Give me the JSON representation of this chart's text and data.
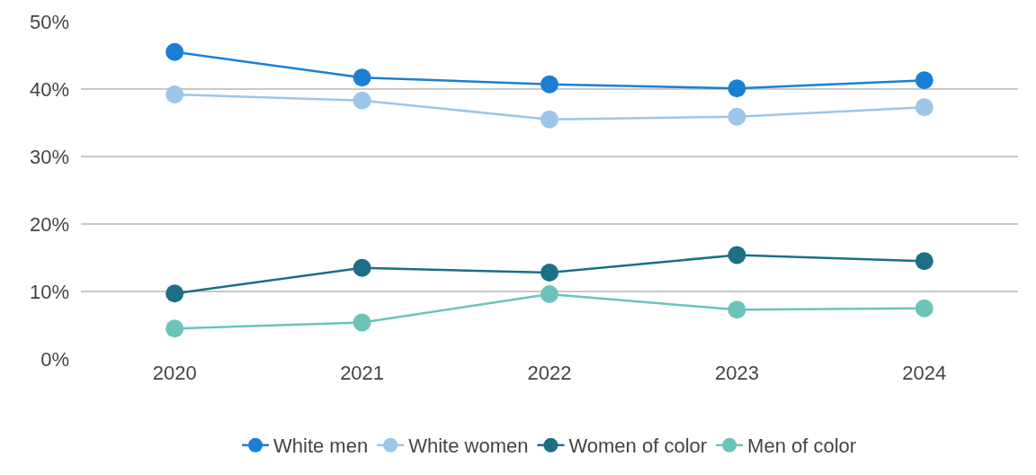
{
  "chart_data": {
    "type": "line",
    "categories": [
      "2020",
      "2021",
      "2022",
      "2023",
      "2024"
    ],
    "series": [
      {
        "name": "White men",
        "color": "#1a7fd4",
        "values": [
          45.5,
          41.7,
          40.7,
          40.1,
          41.3
        ]
      },
      {
        "name": "White women",
        "color": "#9cc6ea",
        "values": [
          39.2,
          38.3,
          35.5,
          35.9,
          37.3
        ]
      },
      {
        "name": "Women of color",
        "color": "#1b6f87",
        "values": [
          9.7,
          13.5,
          12.8,
          15.4,
          14.5
        ]
      },
      {
        "name": "Men of color",
        "color": "#6cc3b9",
        "values": [
          4.5,
          5.4,
          9.6,
          7.3,
          7.5
        ]
      }
    ],
    "ylim": [
      0,
      50
    ],
    "yticks": [
      {
        "value": 0,
        "label": "0%"
      },
      {
        "value": 10,
        "label": "10%"
      },
      {
        "value": 20,
        "label": "20%"
      },
      {
        "value": 30,
        "label": "30%"
      },
      {
        "value": 40,
        "label": "40%"
      },
      {
        "value": 50,
        "label": "50%"
      }
    ],
    "grid": "y",
    "legend": "bottom",
    "marker": "circle",
    "line_style": "solid"
  }
}
